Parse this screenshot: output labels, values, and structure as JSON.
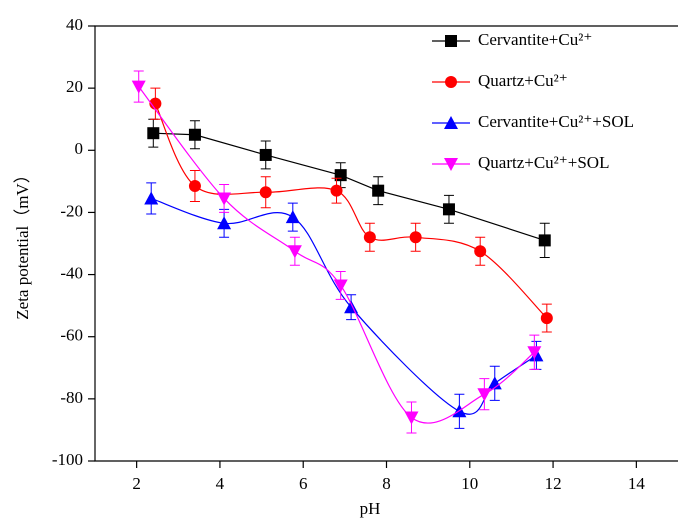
{
  "chart_data": {
    "type": "scatter",
    "x_label": "pH",
    "y_label": "Zeta potential（mV）",
    "xlim": [
      1,
      15
    ],
    "ylim": [
      -100,
      40
    ],
    "xticks": [
      2,
      4,
      6,
      8,
      10,
      12,
      14
    ],
    "yticks": [
      -100,
      -80,
      -60,
      -40,
      -20,
      0,
      20,
      40
    ],
    "legend": "upper right",
    "series": [
      {
        "name": "Cervantite+Cu²⁺",
        "color": "#000000",
        "marker": "square",
        "curve": "straight",
        "x": [
          2.4,
          3.4,
          5.1,
          6.9,
          7.8,
          9.5,
          11.8
        ],
        "values": [
          5.5,
          5,
          -1.5,
          -8,
          -13,
          -19,
          -29
        ],
        "errors": [
          4.5,
          4.5,
          4.5,
          4,
          4.5,
          4.5,
          5.5
        ]
      },
      {
        "name": "Quartz+Cu²⁺",
        "color": "#ff0000",
        "marker": "circle",
        "curve": "spline",
        "x": [
          2.45,
          3.4,
          5.1,
          6.8,
          7.6,
          8.7,
          10.25,
          11.85
        ],
        "values": [
          15,
          -11.5,
          -13.5,
          -13,
          -28,
          -28,
          -32.5,
          -54
        ],
        "errors": [
          5,
          5,
          5,
          4,
          4.5,
          4.5,
          4.5,
          4.5
        ]
      },
      {
        "name": "Cervantite+Cu²⁺+SOL",
        "color": "#0000ff",
        "marker": "triangle-up",
        "curve": "spline",
        "x": [
          2.35,
          4.1,
          5.75,
          7.15,
          9.75,
          10.6,
          11.6
        ],
        "values": [
          -15.5,
          -23.5,
          -21.5,
          -50.5,
          -84,
          -75,
          -66
        ],
        "errors": [
          5,
          4.5,
          4.5,
          4,
          5.5,
          5.5,
          4.5
        ]
      },
      {
        "name": "Quartz+Cu²⁺+SOL",
        "color": "#ff00ff",
        "marker": "triangle-down",
        "curve": "spline",
        "x": [
          2.05,
          4.1,
          5.8,
          6.9,
          8.6,
          10.35,
          11.55
        ],
        "values": [
          20.5,
          -15.5,
          -32.5,
          -43.5,
          -86,
          -78.5,
          -65
        ],
        "errors": [
          5,
          4.5,
          4.5,
          4.5,
          5,
          5,
          5.5
        ]
      }
    ]
  }
}
